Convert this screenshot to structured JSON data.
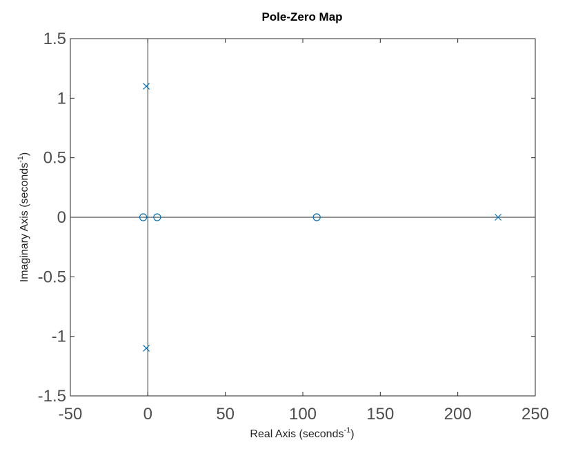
{
  "chart_data": {
    "type": "scatter",
    "title": "Pole-Zero Map",
    "xlabel": {
      "prefix": "Real Axis  (seconds",
      "sup": "-1",
      "suffix": ")"
    },
    "ylabel": {
      "prefix": "Imaginary Axis  (seconds",
      "sup": "-1",
      "suffix": ")"
    },
    "xlim": [
      -50,
      250
    ],
    "ylim": [
      -1.5,
      1.5
    ],
    "xticks": [
      -50,
      0,
      50,
      100,
      150,
      200,
      250
    ],
    "xtick_labels": [
      "-50",
      "0",
      "50",
      "100",
      "150",
      "200",
      "250"
    ],
    "yticks": [
      -1.5,
      -1,
      -0.5,
      0,
      0.5,
      1,
      1.5
    ],
    "ytick_labels": [
      "-1.5",
      "-1",
      "-0.5",
      "0",
      "0.5",
      "1",
      "1.5"
    ],
    "grid": false,
    "marker_color": "#0072bd",
    "series": [
      {
        "marker": "x",
        "points": [
          {
            "x": -1,
            "y": 1.1
          },
          {
            "x": -1,
            "y": -1.1
          },
          {
            "x": 226,
            "y": 0
          }
        ]
      },
      {
        "marker": "o",
        "points": [
          {
            "x": -3,
            "y": 0
          },
          {
            "x": 6,
            "y": 0
          },
          {
            "x": 109,
            "y": 0
          }
        ]
      }
    ]
  }
}
